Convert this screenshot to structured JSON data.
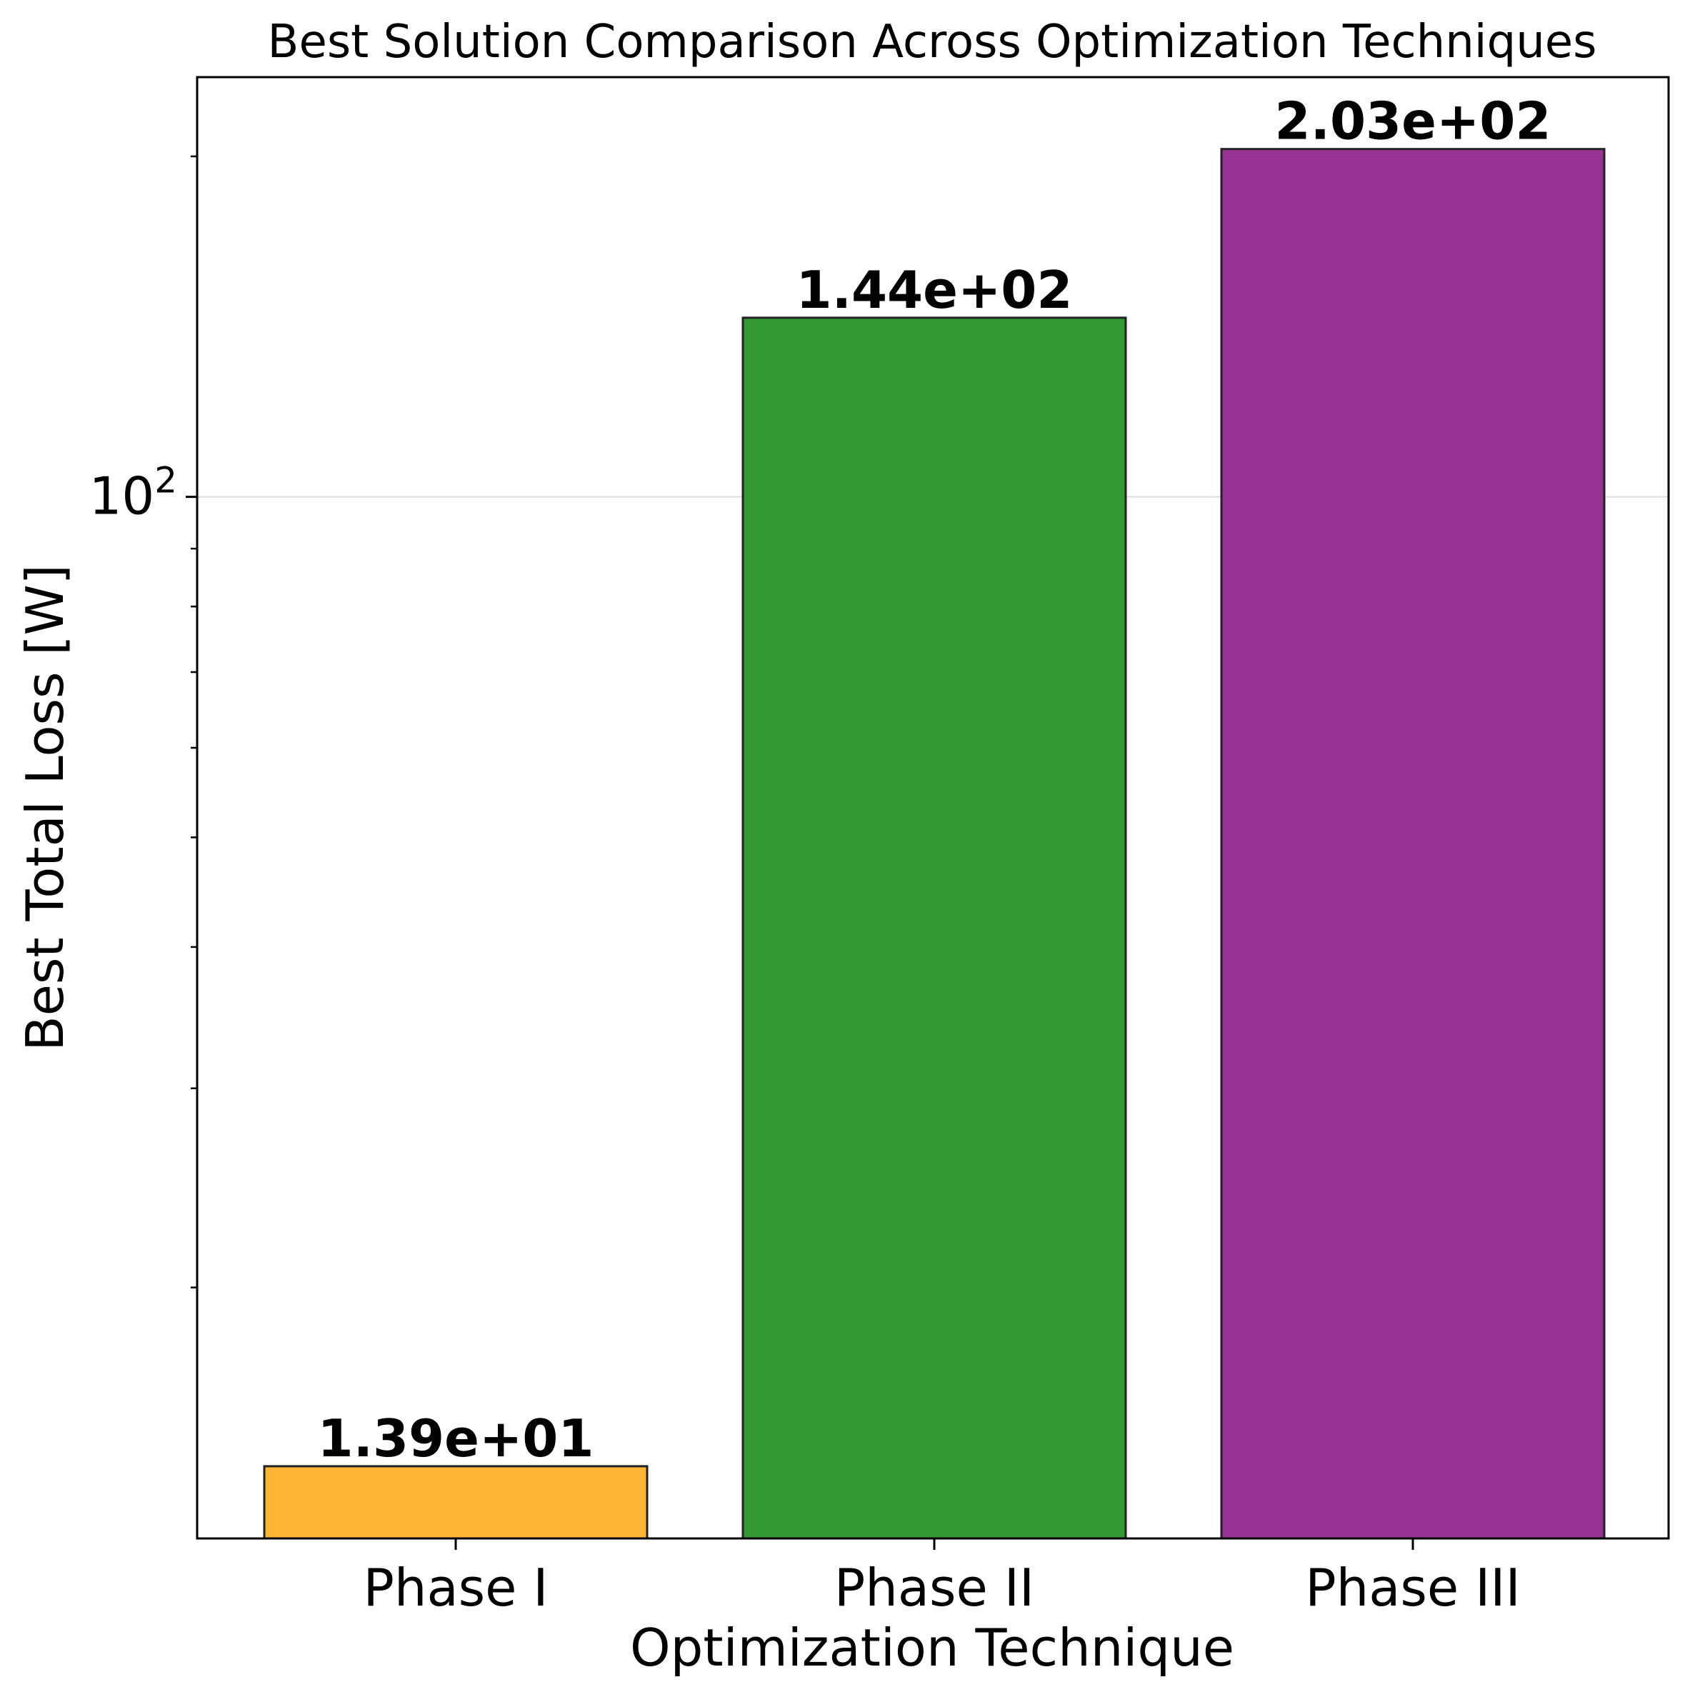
{
  "chart_data": {
    "type": "bar",
    "title": "Best Solution Comparison Across Optimization Techniques",
    "xlabel": "Optimization Technique",
    "ylabel": "Best Total Loss [W]",
    "categories": [
      "Phase I",
      "Phase II",
      "Phase III"
    ],
    "values": [
      13.9,
      144,
      203
    ],
    "data_labels": [
      "1.39e+01",
      "1.44e+02",
      "2.03e+02"
    ],
    "colors": [
      "#fdb432",
      "#339933",
      "#993393"
    ],
    "edge_color": "#222222",
    "y_scale": "log",
    "ylim": [
      12.0,
      235.0
    ],
    "y_major_ticks": [
      {
        "value": 100,
        "base": "10",
        "exponent": "2"
      }
    ],
    "y_minor_ticks": [
      20,
      30,
      40,
      50,
      60,
      70,
      80,
      90,
      200
    ],
    "grid": "y-major",
    "grid_color": "#dddddd",
    "legend": "none"
  }
}
